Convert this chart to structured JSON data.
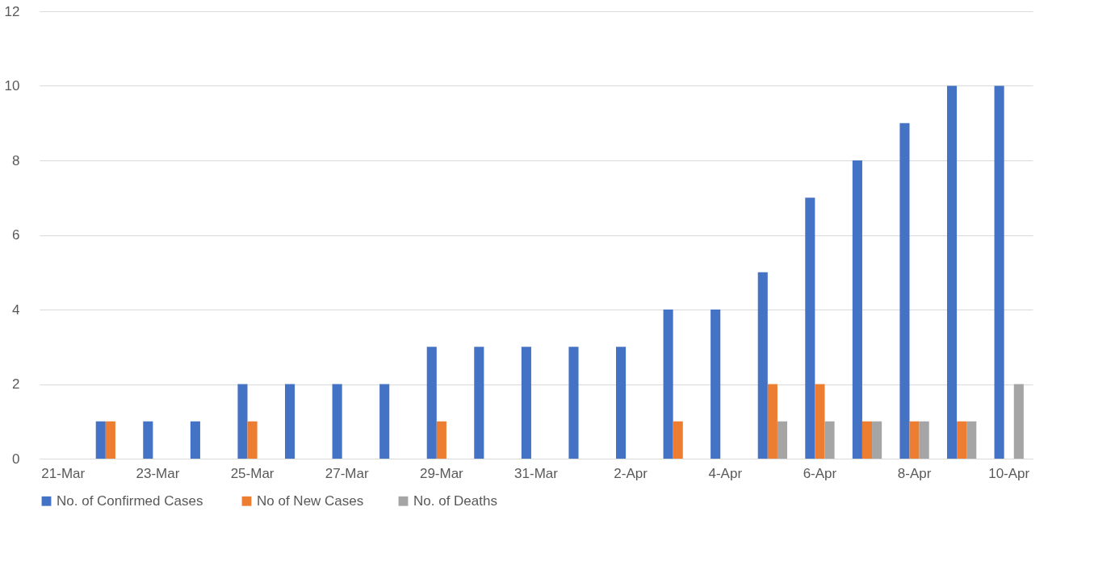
{
  "chart_data": {
    "type": "bar",
    "categories": [
      "21-Mar",
      null,
      "23-Mar",
      null,
      "25-Mar",
      null,
      "27-Mar",
      null,
      "29-Mar",
      null,
      "31-Mar",
      null,
      "2-Apr",
      null,
      "4-Apr",
      null,
      "6-Apr",
      null,
      "8-Apr",
      null,
      "10-Apr"
    ],
    "series": [
      {
        "name": "No. of  Confirmed Cases",
        "color": "#4472c4",
        "values": [
          null,
          1,
          1,
          1,
          2,
          2,
          2,
          2,
          3,
          3,
          3,
          3,
          3,
          4,
          4,
          5,
          7,
          8,
          9,
          10,
          10
        ]
      },
      {
        "name": "No of New Cases",
        "color": "#ed7d31",
        "values": [
          null,
          1,
          null,
          null,
          1,
          null,
          null,
          null,
          1,
          null,
          null,
          null,
          null,
          1,
          null,
          2,
          2,
          1,
          1,
          1,
          null
        ]
      },
      {
        "name": "No. of Deaths",
        "color": "#a5a5a5",
        "values": [
          null,
          null,
          null,
          null,
          null,
          null,
          null,
          null,
          null,
          null,
          null,
          null,
          null,
          null,
          null,
          1,
          1,
          1,
          1,
          1,
          2
        ]
      }
    ],
    "ylim": [
      0,
      12
    ],
    "yticks": [
      0,
      2,
      4,
      6,
      8,
      10,
      12
    ],
    "grid": "y",
    "legend": "bottom"
  }
}
